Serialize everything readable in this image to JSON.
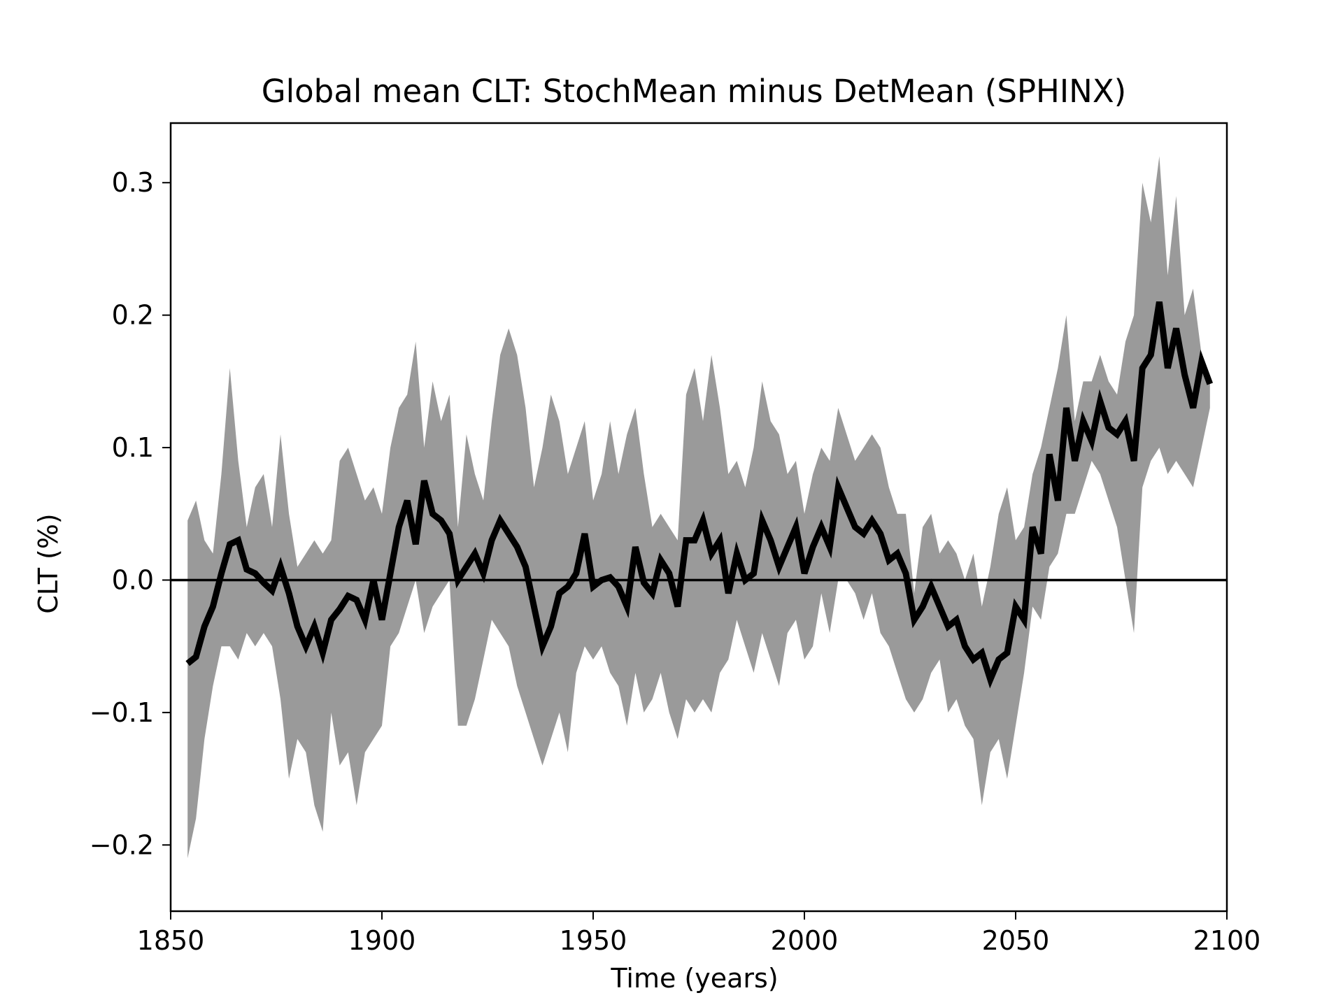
{
  "chart_data": {
    "type": "line",
    "title": "Global mean CLT: StochMean minus DetMean (SPHINX)",
    "xlabel": "Time (years)",
    "ylabel": "CLT (%)",
    "xlim": [
      1850,
      2100
    ],
    "ylim": [
      -0.25,
      0.345
    ],
    "xticks": [
      1850,
      1900,
      1950,
      2000,
      2050,
      2100
    ],
    "xtick_labels": [
      "1850",
      "1900",
      "1950",
      "2000",
      "2050",
      "2100"
    ],
    "yticks": [
      -0.2,
      -0.1,
      0.0,
      0.1,
      0.2,
      0.3
    ],
    "ytick_labels": [
      "−0.2",
      "−0.1",
      "0.0",
      "0.1",
      "0.2",
      "0.3"
    ],
    "grid": false,
    "reference_line": {
      "y": 0.0,
      "color": "#000000"
    },
    "colors": {
      "mean_line": "#000000",
      "spread_band": "#9a9a9a"
    },
    "series": [
      {
        "name": "StochMean minus DetMean",
        "x": [
          1854,
          1856,
          1858,
          1860,
          1862,
          1864,
          1866,
          1868,
          1870,
          1872,
          1874,
          1876,
          1878,
          1880,
          1882,
          1884,
          1886,
          1888,
          1890,
          1892,
          1894,
          1896,
          1898,
          1900,
          1902,
          1904,
          1906,
          1908,
          1910,
          1912,
          1914,
          1916,
          1918,
          1920,
          1922,
          1924,
          1926,
          1928,
          1930,
          1932,
          1934,
          1936,
          1938,
          1940,
          1942,
          1944,
          1946,
          1948,
          1950,
          1952,
          1954,
          1956,
          1958,
          1960,
          1962,
          1964,
          1966,
          1968,
          1970,
          1972,
          1974,
          1976,
          1978,
          1980,
          1982,
          1984,
          1986,
          1988,
          1990,
          1992,
          1994,
          1996,
          1998,
          2000,
          2002,
          2004,
          2006,
          2008,
          2010,
          2012,
          2014,
          2016,
          2018,
          2020,
          2022,
          2024,
          2026,
          2028,
          2030,
          2032,
          2034,
          2036,
          2038,
          2040,
          2042,
          2044,
          2046,
          2048,
          2050,
          2052,
          2054,
          2056,
          2058,
          2060,
          2062,
          2064,
          2066,
          2068,
          2070,
          2072,
          2074,
          2076,
          2078,
          2080,
          2082,
          2084,
          2086,
          2088,
          2090,
          2092,
          2094,
          2096
        ],
        "y": [
          -0.063,
          -0.058,
          -0.035,
          -0.02,
          0.005,
          0.027,
          0.03,
          0.008,
          0.005,
          -0.002,
          -0.008,
          0.01,
          -0.01,
          -0.035,
          -0.05,
          -0.035,
          -0.055,
          -0.03,
          -0.022,
          -0.012,
          -0.015,
          -0.03,
          0.0,
          -0.03,
          0.005,
          0.04,
          0.06,
          0.027,
          0.075,
          0.05,
          0.045,
          0.035,
          0.0,
          0.01,
          0.02,
          0.005,
          0.03,
          0.045,
          0.035,
          0.025,
          0.01,
          -0.02,
          -0.05,
          -0.035,
          -0.01,
          -0.005,
          0.005,
          0.035,
          -0.005,
          0.0,
          0.002,
          -0.005,
          -0.02,
          0.025,
          -0.002,
          -0.01,
          0.015,
          0.005,
          -0.02,
          0.03,
          0.03,
          0.045,
          0.02,
          0.03,
          -0.01,
          0.02,
          0.0,
          0.005,
          0.045,
          0.03,
          0.01,
          0.025,
          0.04,
          0.005,
          0.025,
          0.04,
          0.025,
          0.07,
          0.055,
          0.04,
          0.035,
          0.045,
          0.035,
          0.015,
          0.02,
          0.005,
          -0.03,
          -0.02,
          -0.005,
          -0.02,
          -0.035,
          -0.03,
          -0.05,
          -0.06,
          -0.055,
          -0.075,
          -0.06,
          -0.055,
          -0.02,
          -0.03,
          0.04,
          0.02,
          0.095,
          0.06,
          0.13,
          0.09,
          0.12,
          0.105,
          0.135,
          0.115,
          0.11,
          0.12,
          0.09,
          0.16,
          0.17,
          0.21,
          0.16,
          0.19,
          0.155,
          0.13,
          0.165,
          0.148
        ]
      }
    ],
    "band": {
      "name": "spread",
      "x": [
        1854,
        1856,
        1858,
        1860,
        1862,
        1864,
        1866,
        1868,
        1870,
        1872,
        1874,
        1876,
        1878,
        1880,
        1882,
        1884,
        1886,
        1888,
        1890,
        1892,
        1894,
        1896,
        1898,
        1900,
        1902,
        1904,
        1906,
        1908,
        1910,
        1912,
        1914,
        1916,
        1918,
        1920,
        1922,
        1924,
        1926,
        1928,
        1930,
        1932,
        1934,
        1936,
        1938,
        1940,
        1942,
        1944,
        1946,
        1948,
        1950,
        1952,
        1954,
        1956,
        1958,
        1960,
        1962,
        1964,
        1966,
        1968,
        1970,
        1972,
        1974,
        1976,
        1978,
        1980,
        1982,
        1984,
        1986,
        1988,
        1990,
        1992,
        1994,
        1996,
        1998,
        2000,
        2002,
        2004,
        2006,
        2008,
        2010,
        2012,
        2014,
        2016,
        2018,
        2020,
        2022,
        2024,
        2026,
        2028,
        2030,
        2032,
        2034,
        2036,
        2038,
        2040,
        2042,
        2044,
        2046,
        2048,
        2050,
        2052,
        2054,
        2056,
        2058,
        2060,
        2062,
        2064,
        2066,
        2068,
        2070,
        2072,
        2074,
        2076,
        2078,
        2080,
        2082,
        2084,
        2086,
        2088,
        2090,
        2092,
        2094,
        2096
      ],
      "upper": [
        0.045,
        0.06,
        0.03,
        0.02,
        0.08,
        0.16,
        0.09,
        0.04,
        0.07,
        0.08,
        0.04,
        0.11,
        0.05,
        0.01,
        0.02,
        0.03,
        0.02,
        0.03,
        0.09,
        0.1,
        0.08,
        0.06,
        0.07,
        0.05,
        0.1,
        0.13,
        0.14,
        0.18,
        0.1,
        0.15,
        0.12,
        0.14,
        0.04,
        0.11,
        0.08,
        0.06,
        0.12,
        0.17,
        0.19,
        0.17,
        0.13,
        0.07,
        0.1,
        0.14,
        0.12,
        0.08,
        0.1,
        0.12,
        0.06,
        0.08,
        0.12,
        0.08,
        0.11,
        0.13,
        0.08,
        0.04,
        0.05,
        0.04,
        0.03,
        0.14,
        0.16,
        0.12,
        0.17,
        0.13,
        0.08,
        0.09,
        0.07,
        0.1,
        0.15,
        0.12,
        0.11,
        0.08,
        0.09,
        0.05,
        0.08,
        0.1,
        0.09,
        0.13,
        0.11,
        0.09,
        0.1,
        0.11,
        0.1,
        0.07,
        0.05,
        0.05,
        -0.01,
        0.04,
        0.05,
        0.02,
        0.03,
        0.02,
        0.0,
        0.02,
        -0.02,
        0.01,
        0.05,
        0.07,
        0.03,
        0.04,
        0.08,
        0.1,
        0.13,
        0.16,
        0.2,
        0.12,
        0.15,
        0.15,
        0.17,
        0.15,
        0.14,
        0.18,
        0.2,
        0.3,
        0.27,
        0.32,
        0.23,
        0.29,
        0.2,
        0.22,
        0.17,
        0.15
      ],
      "lower": [
        -0.21,
        -0.18,
        -0.12,
        -0.08,
        -0.05,
        -0.05,
        -0.06,
        -0.04,
        -0.05,
        -0.04,
        -0.05,
        -0.09,
        -0.15,
        -0.12,
        -0.13,
        -0.17,
        -0.19,
        -0.1,
        -0.14,
        -0.13,
        -0.17,
        -0.13,
        -0.12,
        -0.11,
        -0.05,
        -0.04,
        -0.02,
        0.0,
        -0.04,
        -0.02,
        -0.01,
        0.0,
        -0.11,
        -0.11,
        -0.09,
        -0.06,
        -0.03,
        -0.04,
        -0.05,
        -0.08,
        -0.1,
        -0.12,
        -0.14,
        -0.12,
        -0.1,
        -0.13,
        -0.07,
        -0.05,
        -0.06,
        -0.05,
        -0.07,
        -0.08,
        -0.11,
        -0.07,
        -0.1,
        -0.09,
        -0.07,
        -0.1,
        -0.12,
        -0.09,
        -0.1,
        -0.09,
        -0.1,
        -0.07,
        -0.06,
        -0.03,
        -0.05,
        -0.07,
        -0.04,
        -0.06,
        -0.08,
        -0.04,
        -0.03,
        -0.06,
        -0.05,
        -0.01,
        -0.04,
        0.0,
        0.0,
        -0.01,
        -0.03,
        -0.01,
        -0.04,
        -0.05,
        -0.07,
        -0.09,
        -0.1,
        -0.09,
        -0.07,
        -0.06,
        -0.1,
        -0.09,
        -0.11,
        -0.12,
        -0.17,
        -0.13,
        -0.12,
        -0.15,
        -0.11,
        -0.07,
        -0.02,
        -0.03,
        0.01,
        0.02,
        0.05,
        0.05,
        0.07,
        0.09,
        0.08,
        0.06,
        0.04,
        0.0,
        -0.04,
        0.07,
        0.09,
        0.1,
        0.08,
        0.09,
        0.08,
        0.07,
        0.1,
        0.13
      ]
    }
  }
}
